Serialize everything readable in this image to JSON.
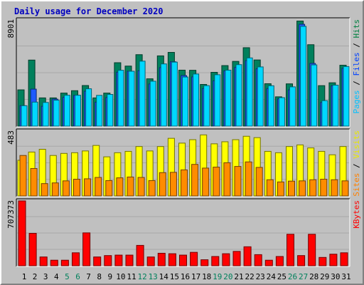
{
  "chart_data": [
    {
      "type": "bar",
      "title": "Daily usage for December 2020",
      "categories": [
        "1",
        "2",
        "3",
        "4",
        "5",
        "6",
        "7",
        "8",
        "9",
        "10",
        "11",
        "12",
        "13",
        "14",
        "15",
        "16",
        "17",
        "18",
        "19",
        "20",
        "21",
        "22",
        "23",
        "24",
        "25",
        "26",
        "27",
        "28",
        "29",
        "30",
        "31"
      ],
      "weekend_days": [
        "5",
        "6",
        "12",
        "13",
        "19",
        "20",
        "26",
        "27"
      ],
      "ymax_label": "8901",
      "ymax": 8901,
      "right_label": [
        {
          "text": "Pages",
          "color": "#00c0ff"
        },
        {
          "text": " / ",
          "color": "#000000"
        },
        {
          "text": "Files",
          "color": "#0040ff"
        },
        {
          "text": " / ",
          "color": "#000000"
        },
        {
          "text": "Hits",
          "color": "#008040"
        }
      ],
      "series": [
        {
          "name": "Hits",
          "color": "#00805c",
          "values": [
            3020,
            5500,
            2350,
            2350,
            2750,
            2950,
            3380,
            2350,
            2750,
            5280,
            5000,
            5950,
            3940,
            5850,
            6140,
            4660,
            4650,
            3470,
            4480,
            5040,
            5390,
            6530,
            5510,
            3530,
            2440,
            3520,
            8750,
            6780,
            3370,
            3610,
            5070
          ]
        },
        {
          "name": "Files",
          "color": "#1e5aff",
          "values": [
            1700,
            3080,
            1650,
            2250,
            2400,
            2560,
            2900,
            1990,
            2380,
            4490,
            4570,
            4610,
            3510,
            4870,
            5360,
            4210,
            4100,
            3130,
            3770,
            4600,
            4890,
            5450,
            4770,
            3130,
            2270,
            3020,
            8480,
            5220,
            1970,
            3360,
            4810
          ]
        },
        {
          "name": "Pages",
          "color": "#00d8ff",
          "values": [
            1700,
            2000,
            1970,
            2160,
            2570,
            2570,
            3110,
            2560,
            2640,
            4650,
            4570,
            5410,
            3740,
            5180,
            5330,
            4090,
            4340,
            3370,
            4280,
            4660,
            5120,
            5680,
            4930,
            3360,
            2370,
            3270,
            8310,
            5100,
            2120,
            3410,
            4960
          ]
        }
      ]
    },
    {
      "type": "bar",
      "categories": [
        "1",
        "2",
        "3",
        "4",
        "5",
        "6",
        "7",
        "8",
        "9",
        "10",
        "11",
        "12",
        "13",
        "14",
        "15",
        "16",
        "17",
        "18",
        "19",
        "20",
        "21",
        "22",
        "23",
        "24",
        "25",
        "26",
        "27",
        "28",
        "29",
        "30",
        "31"
      ],
      "ymax_label": "483",
      "ymax": 483,
      "right_label": [
        {
          "text": "Sites",
          "color": "#ff8000"
        },
        {
          "text": " / ",
          "color": "#000000"
        },
        {
          "text": "Visits",
          "color": "#e8e800"
        }
      ],
      "series": [
        {
          "name": "Visits",
          "color": "#ffff00",
          "values": [
            260,
            320,
            340,
            295,
            310,
            315,
            328,
            368,
            285,
            315,
            325,
            360,
            328,
            360,
            420,
            385,
            410,
            445,
            380,
            395,
            410,
            435,
            425,
            325,
            315,
            360,
            372,
            350,
            325,
            300,
            360
          ]
        },
        {
          "name": "Sites",
          "color": "#ff8c00",
          "values": [
            295,
            200,
            90,
            95,
            110,
            122,
            125,
            135,
            112,
            132,
            138,
            135,
            112,
            170,
            172,
            190,
            230,
            203,
            210,
            242,
            215,
            248,
            208,
            118,
            102,
            108,
            110,
            118,
            122,
            118,
            110
          ]
        }
      ]
    },
    {
      "type": "bar",
      "categories": [
        "1",
        "2",
        "3",
        "4",
        "5",
        "6",
        "7",
        "8",
        "9",
        "10",
        "11",
        "12",
        "13",
        "14",
        "15",
        "16",
        "17",
        "18",
        "19",
        "20",
        "21",
        "22",
        "23",
        "24",
        "25",
        "26",
        "27",
        "28",
        "29",
        "30",
        "31"
      ],
      "ymax_label": "707373",
      "ymax": 707373,
      "right_label": [
        {
          "text": "KBytes",
          "color": "#ff0000"
        }
      ],
      "series": [
        {
          "name": "KBytes",
          "color": "#ff0000",
          "values": [
            700000,
            350000,
            95000,
            60000,
            60000,
            140000,
            355000,
            95000,
            110000,
            115000,
            115000,
            220000,
            95000,
            135000,
            130000,
            115000,
            145000,
            65000,
            100000,
            130000,
            155000,
            205000,
            120000,
            60000,
            100000,
            340000,
            110000,
            340000,
            90000,
            125000,
            140000
          ]
        }
      ]
    }
  ]
}
